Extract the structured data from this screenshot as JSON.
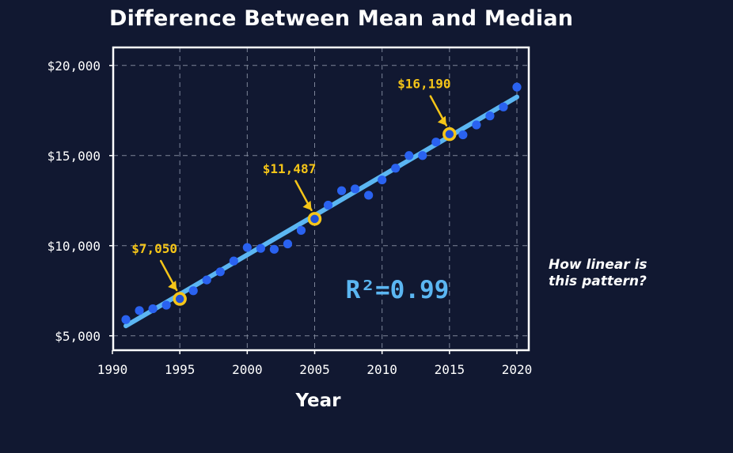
{
  "colors": {
    "background": "#111831",
    "axis": "#ffffff",
    "grid": "#7d8498",
    "points": "#2a62f0",
    "trendline": "#5bb6f2",
    "highlight": "#f5c518",
    "r2_text": "#5bb6f2"
  },
  "side_note": "How linear is this pattern?",
  "chart_data": {
    "type": "scatter",
    "title": "Difference Between Mean and Median",
    "xlabel": "Year",
    "ylabel": "",
    "xlim": [
      1990,
      2020
    ],
    "ylim": [
      4200,
      21000
    ],
    "grid": true,
    "x_ticks": [
      1990,
      1995,
      2000,
      2005,
      2010,
      2015,
      2020
    ],
    "x_tick_labels": [
      "1990",
      "1995",
      "2000",
      "2005",
      "2010",
      "2015",
      "2020"
    ],
    "y_ticks": [
      5000,
      10000,
      15000,
      20000
    ],
    "y_tick_labels": [
      "$5,000",
      "$10,000",
      "$15,000",
      "$20,000"
    ],
    "series": [
      {
        "x": [
          1991,
          1992,
          1993,
          1994,
          1995,
          1996,
          1997,
          1998,
          1999,
          2000,
          2001,
          2002,
          2003,
          2004,
          2005,
          2006,
          2007,
          2008,
          2009,
          2010,
          2011,
          2012,
          2013,
          2014,
          2015,
          2016,
          2017,
          2018,
          2019,
          2020
        ],
        "y": [
          5900,
          6400,
          6500,
          6700,
          7050,
          7500,
          8100,
          8550,
          9150,
          9900,
          9850,
          9800,
          10100,
          10850,
          11487,
          12250,
          13050,
          13150,
          12800,
          13650,
          14300,
          15000,
          15000,
          15750,
          16190,
          16150,
          16700,
          17200,
          17700,
          18800
        ]
      }
    ],
    "trendline": {
      "x": [
        1991,
        2020
      ],
      "y": [
        5550,
        18250
      ]
    },
    "annotations": [
      {
        "x": 1995,
        "y": 7050,
        "label": "$7,050"
      },
      {
        "x": 2005,
        "y": 11487,
        "label": "$11,487"
      },
      {
        "x": 2015,
        "y": 16190,
        "label": "$16,190"
      }
    ],
    "r_squared": "R²=0.99"
  }
}
